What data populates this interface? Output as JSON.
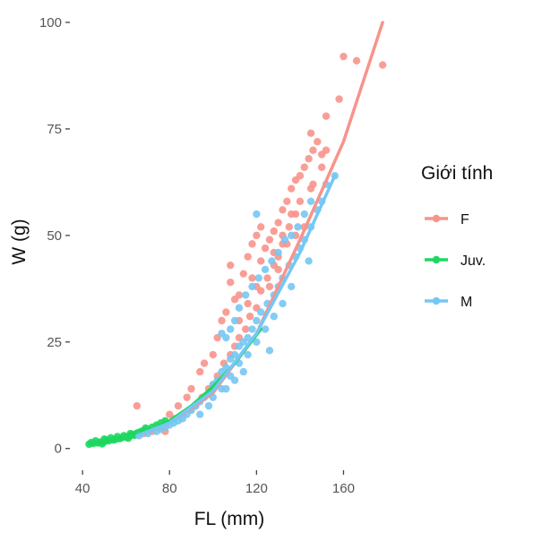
{
  "chart_data": {
    "type": "scatter",
    "xlabel": "FL (mm)",
    "ylabel": "W (g)",
    "xlim": [
      35,
      180
    ],
    "ylim": [
      -3,
      100
    ],
    "xticks": [
      40,
      80,
      120,
      160
    ],
    "yticks": [
      0,
      25,
      50,
      75,
      100
    ],
    "grid": false,
    "legend": {
      "title": "Giới tính",
      "position": "right",
      "items": [
        "F",
        "Juv.",
        "M"
      ]
    },
    "series": [
      {
        "name": "F",
        "color": "#F8938B",
        "fit_curve": {
          "x": [
            68,
            80,
            100,
            120,
            140,
            160,
            178
          ],
          "y": [
            3.5,
            6,
            13,
            27,
            49,
            72,
            100
          ]
        },
        "points": [
          [
            178,
            90
          ],
          [
            166,
            91
          ],
          [
            158,
            82
          ],
          [
            150,
            69
          ],
          [
            145,
            74
          ],
          [
            150,
            66
          ],
          [
            145,
            61
          ],
          [
            140,
            58
          ],
          [
            138,
            55
          ],
          [
            135,
            52
          ],
          [
            132,
            48
          ],
          [
            130,
            45
          ],
          [
            128,
            43
          ],
          [
            125,
            40
          ],
          [
            122,
            37
          ],
          [
            120,
            33
          ],
          [
            117,
            31
          ],
          [
            115,
            28
          ],
          [
            112,
            26
          ],
          [
            110,
            24
          ],
          [
            108,
            22
          ],
          [
            105,
            20
          ],
          [
            102,
            17
          ],
          [
            100,
            15
          ],
          [
            98,
            14
          ],
          [
            95,
            12
          ],
          [
            92,
            10
          ],
          [
            90,
            9
          ],
          [
            86,
            8
          ],
          [
            82,
            7
          ],
          [
            78,
            6
          ],
          [
            75,
            5
          ],
          [
            72,
            4
          ],
          [
            68,
            3.5
          ],
          [
            65,
            10
          ],
          [
            78,
            4
          ],
          [
            108,
            43
          ],
          [
            108,
            39
          ],
          [
            112,
            36
          ],
          [
            118,
            48
          ],
          [
            120,
            50
          ],
          [
            122,
            52
          ],
          [
            116,
            45
          ],
          [
            124,
            47
          ],
          [
            128,
            51
          ],
          [
            132,
            56
          ],
          [
            136,
            61
          ],
          [
            140,
            64
          ],
          [
            142,
            66
          ],
          [
            136,
            55
          ],
          [
            138,
            63
          ],
          [
            130,
            53
          ],
          [
            126,
            49
          ],
          [
            114,
            41
          ],
          [
            110,
            35
          ],
          [
            104,
            30
          ],
          [
            102,
            26
          ],
          [
            106,
            32
          ],
          [
            134,
            58
          ],
          [
            144,
            68
          ],
          [
            146,
            70
          ],
          [
            148,
            72
          ],
          [
            152,
            70
          ],
          [
            146,
            62
          ],
          [
            152,
            78
          ],
          [
            160,
            92
          ],
          [
            118,
            40
          ],
          [
            122,
            44
          ],
          [
            126,
            38
          ],
          [
            130,
            42
          ],
          [
            134,
            48
          ],
          [
            138,
            50
          ],
          [
            142,
            52
          ],
          [
            100,
            22
          ],
          [
            96,
            20
          ],
          [
            94,
            18
          ],
          [
            90,
            14
          ],
          [
            88,
            12
          ],
          [
            84,
            10
          ],
          [
            80,
            8
          ],
          [
            112,
            30
          ],
          [
            116,
            34
          ],
          [
            120,
            38
          ],
          [
            128,
            46
          ],
          [
            132,
            50
          ]
        ]
      },
      {
        "name": "Juv.",
        "color": "#1ED760",
        "fit_curve": {
          "x": [
            43,
            50,
            60,
            70,
            80,
            90,
            100,
            110,
            122
          ],
          "y": [
            1.2,
            1.6,
            2.5,
            4,
            6.5,
            10,
            14.5,
            20,
            28
          ]
        },
        "points": [
          [
            43,
            1
          ],
          [
            45,
            1.2
          ],
          [
            47,
            1.3
          ],
          [
            48,
            1.5
          ],
          [
            50,
            1.6
          ],
          [
            52,
            1.8
          ],
          [
            54,
            2
          ],
          [
            55,
            2.1
          ],
          [
            57,
            2.3
          ],
          [
            58,
            2.5
          ],
          [
            60,
            2.7
          ],
          [
            62,
            3
          ],
          [
            63,
            3.3
          ],
          [
            65,
            3.6
          ],
          [
            67,
            4
          ],
          [
            68,
            4.2
          ],
          [
            70,
            4.5
          ],
          [
            72,
            5
          ],
          [
            74,
            5.5
          ],
          [
            76,
            6
          ],
          [
            78,
            6.5
          ],
          [
            46,
            1.8
          ],
          [
            50,
            2.2
          ],
          [
            53,
            2.5
          ],
          [
            56,
            2.8
          ],
          [
            59,
            3
          ],
          [
            61,
            2.4
          ],
          [
            64,
            3.1
          ],
          [
            66,
            3.8
          ],
          [
            69,
            4.8
          ],
          [
            44,
            1.4
          ],
          [
            49,
            1.1
          ],
          [
            51,
            2.0
          ],
          [
            62,
            3.5
          ]
        ]
      },
      {
        "name": "M",
        "color": "#75C7F3",
        "fit_curve": {
          "x": [
            65,
            80,
            100,
            120,
            140,
            156
          ],
          "y": [
            3,
            6,
            13.5,
            27,
            46,
            64
          ]
        },
        "points": [
          [
            156,
            64
          ],
          [
            152,
            62
          ],
          [
            150,
            58
          ],
          [
            148,
            56
          ],
          [
            145,
            52
          ],
          [
            142,
            49
          ],
          [
            140,
            47
          ],
          [
            138,
            45
          ],
          [
            135,
            43
          ],
          [
            132,
            40
          ],
          [
            130,
            38
          ],
          [
            128,
            36
          ],
          [
            125,
            34
          ],
          [
            122,
            32
          ],
          [
            120,
            30
          ],
          [
            118,
            28
          ],
          [
            116,
            26
          ],
          [
            114,
            25
          ],
          [
            112,
            24
          ],
          [
            110,
            22
          ],
          [
            108,
            21
          ],
          [
            106,
            19
          ],
          [
            104,
            18
          ],
          [
            102,
            16
          ],
          [
            100,
            15
          ],
          [
            98,
            13
          ],
          [
            96,
            12
          ],
          [
            94,
            11
          ],
          [
            92,
            10
          ],
          [
            90,
            9
          ],
          [
            88,
            8
          ],
          [
            86,
            7
          ],
          [
            84,
            6.5
          ],
          [
            82,
            6
          ],
          [
            80,
            5.5
          ],
          [
            78,
            5
          ],
          [
            76,
            4.5
          ],
          [
            74,
            4
          ],
          [
            70,
            3.5
          ],
          [
            66,
            3
          ],
          [
            104,
            27
          ],
          [
            106,
            26
          ],
          [
            108,
            28
          ],
          [
            110,
            30
          ],
          [
            112,
            33
          ],
          [
            115,
            36
          ],
          [
            118,
            38
          ],
          [
            121,
            40
          ],
          [
            124,
            42
          ],
          [
            127,
            44
          ],
          [
            130,
            46
          ],
          [
            133,
            49
          ],
          [
            136,
            50
          ],
          [
            139,
            52
          ],
          [
            142,
            55
          ],
          [
            145,
            58
          ],
          [
            100,
            12
          ],
          [
            104,
            14
          ],
          [
            108,
            17
          ],
          [
            112,
            20
          ],
          [
            116,
            22
          ],
          [
            120,
            25
          ],
          [
            124,
            28
          ],
          [
            128,
            31
          ],
          [
            132,
            34
          ],
          [
            136,
            38
          ],
          [
            120,
            55
          ],
          [
            114,
            18
          ],
          [
            110,
            16
          ],
          [
            106,
            14
          ],
          [
            98,
            10
          ],
          [
            94,
            8
          ],
          [
            126,
            23
          ],
          [
            144,
            44
          ]
        ]
      }
    ]
  }
}
